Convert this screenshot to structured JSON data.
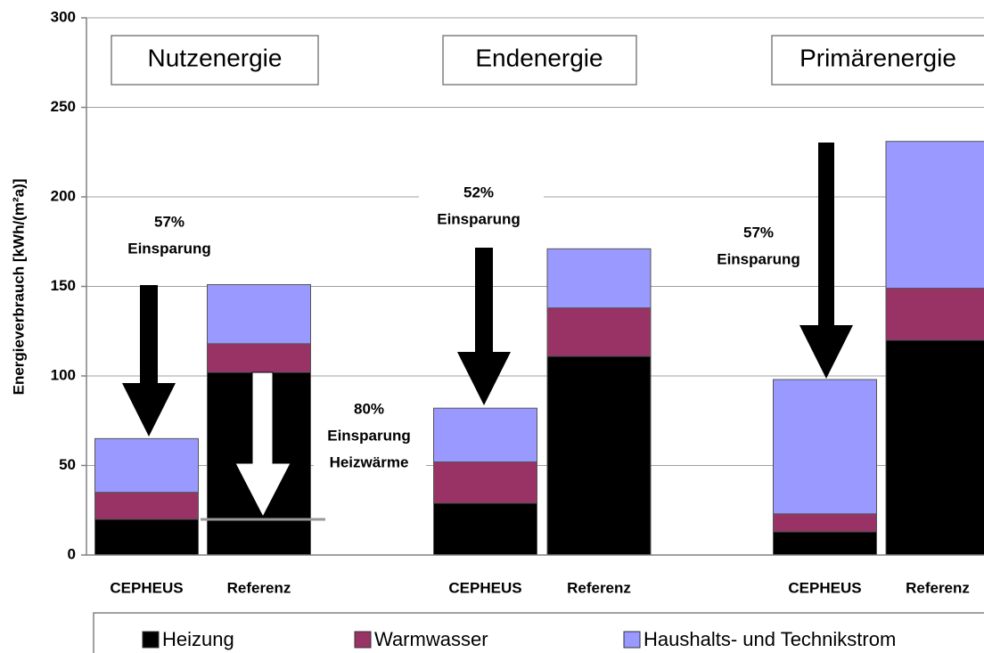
{
  "chart_data": {
    "type": "stacked-bar",
    "ylabel": "Energieverbrauch [kWh/(m²a)]",
    "groups": [
      "Nutzenergie",
      "Endenergie",
      "Primärenergie"
    ],
    "categories": [
      "CEPHEUS",
      "Referenz",
      "CEPHEUS",
      "Referenz",
      "CEPHEUS",
      "Referenz"
    ],
    "series": [
      {
        "name": "Heizung",
        "color": "#000000",
        "values": [
          20,
          102,
          29,
          111,
          13,
          120
        ]
      },
      {
        "name": "Warmwasser",
        "color": "#993366",
        "values": [
          15,
          16,
          23,
          27,
          10,
          29
        ]
      },
      {
        "name": "Haushalts- und Technikstrom",
        "color": "#9999ff",
        "values": [
          30,
          33,
          30,
          33,
          75,
          82
        ]
      }
    ],
    "ylim": [
      0,
      300
    ],
    "yticks": [
      0,
      50,
      100,
      150,
      200,
      250,
      300
    ],
    "grid": true,
    "annotations": [
      [
        "57%",
        "Einsparung"
      ],
      [
        "80%",
        "Einsparung",
        "Heizwärme"
      ],
      [
        "52%",
        "Einsparung"
      ],
      [
        "57%",
        "Einsparung"
      ]
    ]
  }
}
